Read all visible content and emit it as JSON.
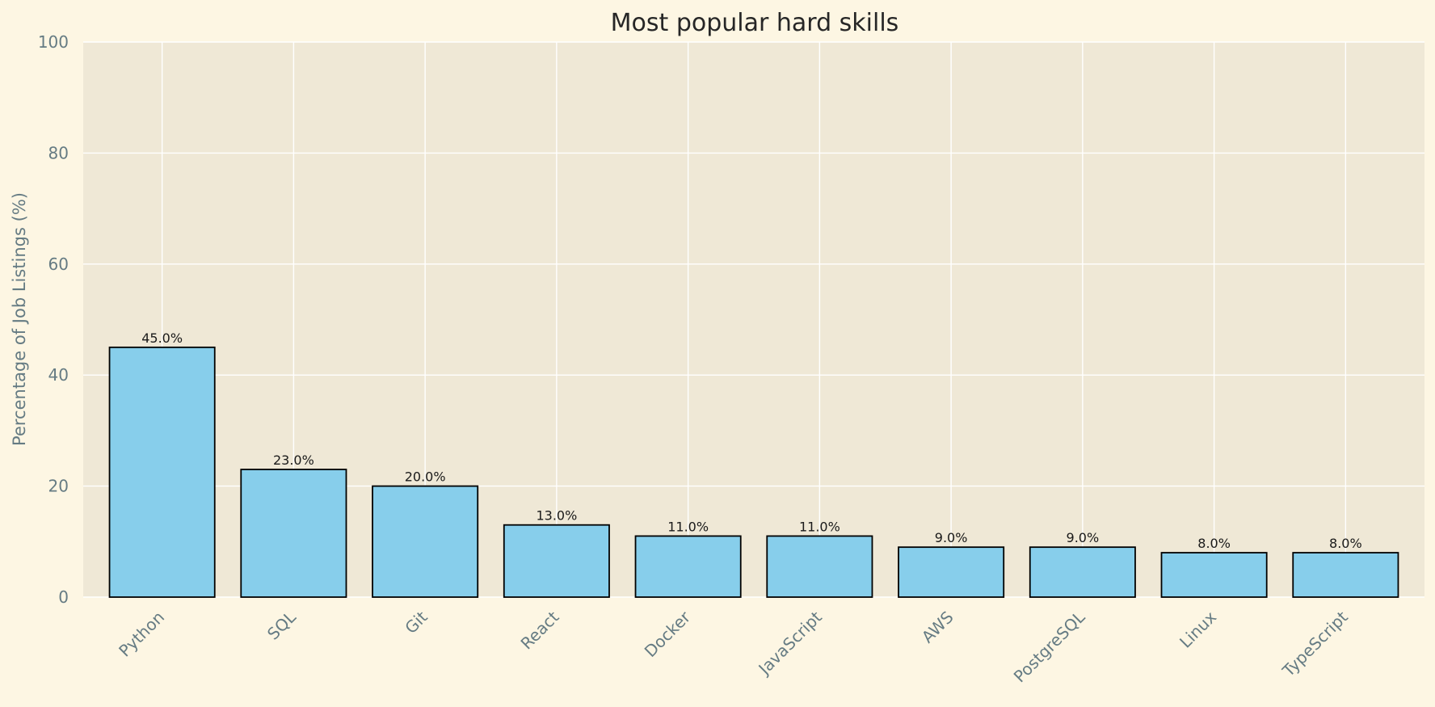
{
  "chart_data": {
    "type": "bar",
    "title": "Most popular hard skills",
    "xlabel": "",
    "ylabel": "Percentage of Job Listings (%)",
    "categories": [
      "Python",
      "SQL",
      "Git",
      "React",
      "Docker",
      "JavaScript",
      "AWS",
      "PostgreSQL",
      "Linux",
      "TypeScript"
    ],
    "values": [
      45.0,
      23.0,
      20.0,
      13.0,
      11.0,
      11.0,
      9.0,
      9.0,
      8.0,
      8.0
    ],
    "value_labels": [
      "45.0%",
      "23.0%",
      "20.0%",
      "13.0%",
      "11.0%",
      "11.0%",
      "9.0%",
      "9.0%",
      "8.0%",
      "8.0%"
    ],
    "ylim": [
      0,
      100
    ],
    "yticks": [
      0,
      20,
      40,
      60,
      80,
      100
    ],
    "grid": true,
    "colors": {
      "bar_fill": "#87ceeb",
      "bar_edge": "#000000",
      "plot_background": "#efe8d6",
      "figure_background": "#fdf6e3",
      "grid": "#ffffff"
    }
  }
}
